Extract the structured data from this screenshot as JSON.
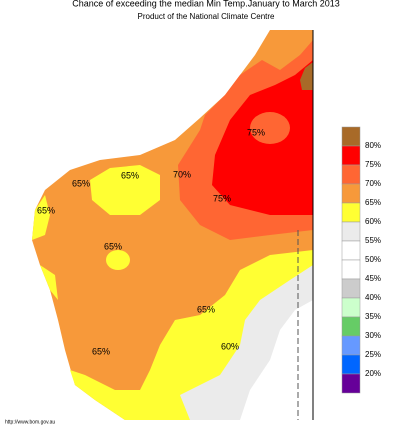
{
  "title": "Chance of exceeding the median Min Temp.January to March 2013",
  "subtitle": "Product of the National Climate Centre",
  "contour_labels": [
    "65%",
    "65%",
    "70%",
    "75%",
    "75%",
    "65%",
    "65%",
    "65%",
    "60%",
    "65%"
  ],
  "legend": {
    "labels": [
      "80%",
      "75%",
      "70%",
      "65%",
      "60%",
      "55%",
      "50%",
      "45%",
      "40%",
      "35%",
      "30%",
      "25%",
      "20%"
    ],
    "colors": [
      "#a86a28",
      "#ff0000",
      "#ff6633",
      "#f7993a",
      "#ffff33",
      "#ebebeb",
      "#ffffff",
      "#ffffff",
      "#cccccc",
      "#ccffcc",
      "#66cc66",
      "#6699ff",
      "#0066ff",
      "#660099"
    ]
  },
  "source": "http://www.bom.gov.au"
}
